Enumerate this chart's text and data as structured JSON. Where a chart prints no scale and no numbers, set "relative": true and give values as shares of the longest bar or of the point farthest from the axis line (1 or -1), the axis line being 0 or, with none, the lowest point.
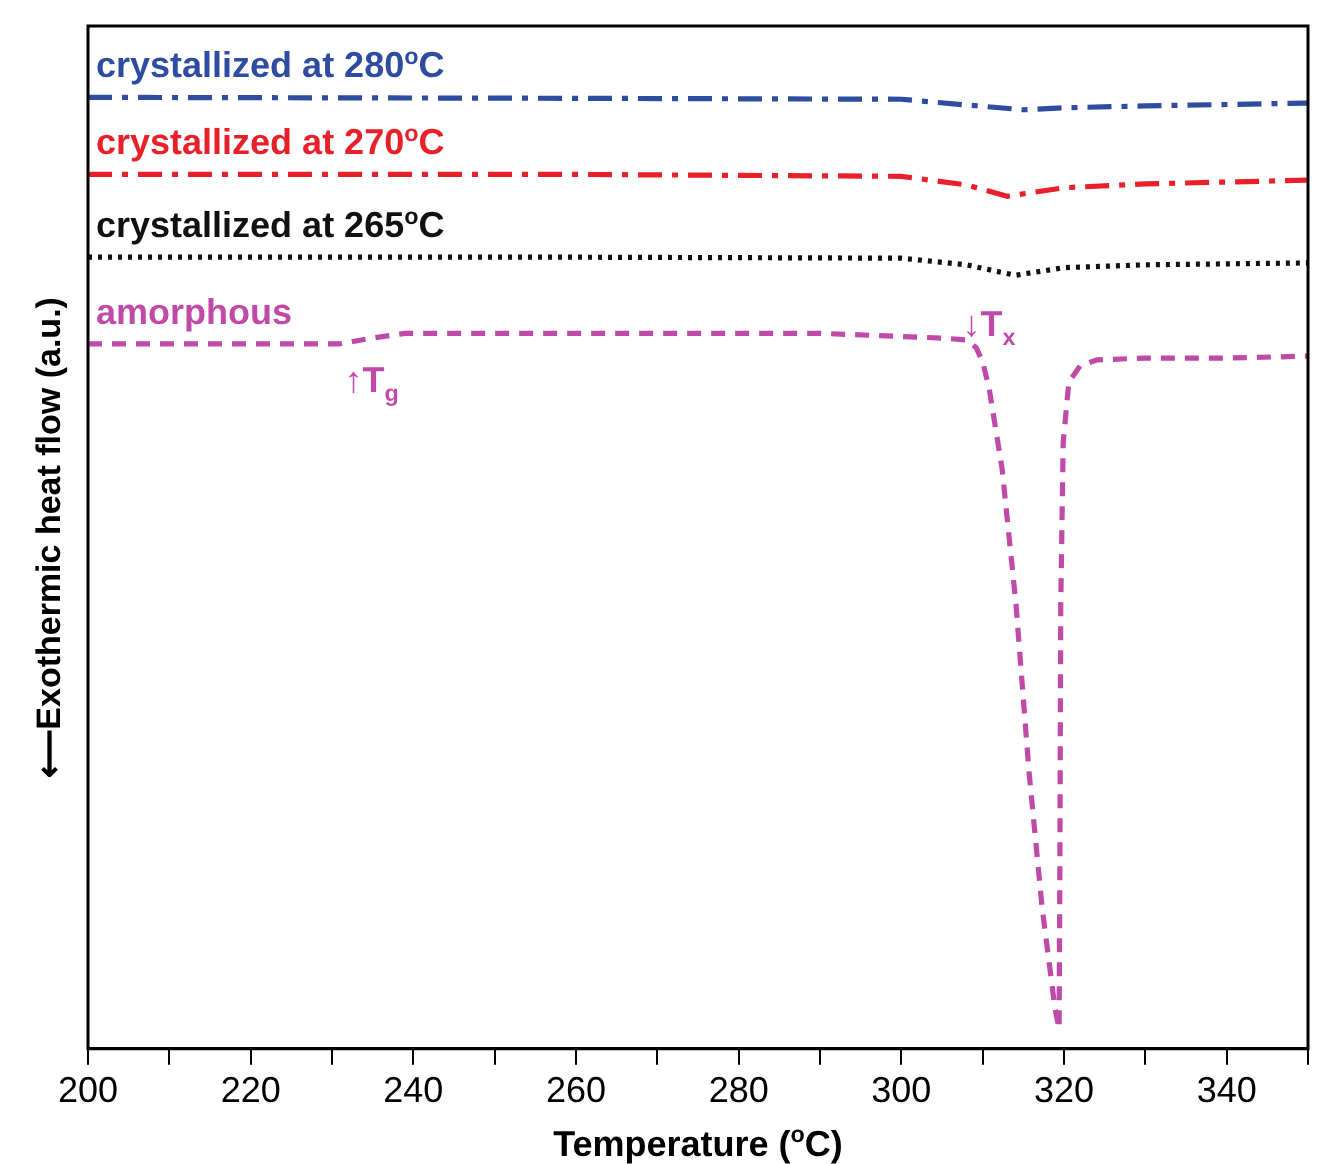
{
  "chart_data": {
    "type": "line",
    "relative": true,
    "xlabel": "Temperature ($^{o}$C)",
    "ylabel": "⟵Exothermic heat flow (a.u.)",
    "xlim": [
      200,
      350
    ],
    "xticks": [
      200,
      {
        "value": 210,
        "label": null
      },
      220,
      {
        "value": 230,
        "label": null
      },
      240,
      {
        "value": 250,
        "label": null
      },
      260,
      {
        "value": 270,
        "label": null
      },
      280,
      {
        "value": 290,
        "label": null
      },
      300,
      {
        "value": 310,
        "label": null
      },
      320,
      {
        "value": 330,
        "label": null
      },
      340,
      {
        "value": 350,
        "label": null
      }
    ],
    "legend": false,
    "grid": false,
    "annotations": [
      {
        "text": "↑T$_{g}$",
        "x": 233,
        "y": 0.741
      },
      {
        "text": "↓T$_{x}$",
        "x": 309,
        "y": 0.737
      }
    ],
    "series": [
      {
        "name": "crystallized at 280$^{o}$C",
        "color": "#2e4da0",
        "line_style": "dashdot",
        "x": [
          200,
          260,
          300,
          308,
          315,
          320,
          330,
          350
        ],
        "values": [
          1.0,
          0.999,
          0.998,
          0.992,
          0.987,
          0.989,
          0.991,
          0.994
        ]
      },
      {
        "name": "crystallized at 270$^{o}$C",
        "color": "#e8202a",
        "line_style": "dashdot",
        "x": [
          200,
          260,
          300,
          308,
          313,
          320,
          330,
          350
        ],
        "values": [
          0.919,
          0.919,
          0.917,
          0.908,
          0.896,
          0.905,
          0.909,
          0.913
        ]
      },
      {
        "name": "crystallized at 265$^{o}$C",
        "color": "#111111",
        "line_style": "dotted",
        "x": [
          200,
          260,
          300,
          308,
          314,
          320,
          330,
          350
        ],
        "values": [
          0.832,
          0.832,
          0.831,
          0.824,
          0.813,
          0.821,
          0.824,
          0.826
        ]
      },
      {
        "name": "amorphous",
        "color": "#c04aa8",
        "line_style": "dashed",
        "x": [
          200,
          231,
          235,
          239,
          260,
          290,
          305,
          308,
          309.2,
          310,
          310.8,
          312.4,
          314.1,
          315.7,
          317.3,
          318.9,
          319.4,
          319.5,
          319.6,
          319.9,
          320.6,
          322,
          324,
          330,
          340,
          350
        ],
        "values": [
          0.741,
          0.741,
          0.747,
          0.752,
          0.752,
          0.752,
          0.747,
          0.745,
          0.737,
          0.722,
          0.694,
          0.609,
          0.467,
          0.291,
          0.149,
          0.042,
          0.021,
          0.212,
          0.467,
          0.637,
          0.701,
          0.718,
          0.724,
          0.726,
          0.726,
          0.728
        ]
      }
    ]
  }
}
